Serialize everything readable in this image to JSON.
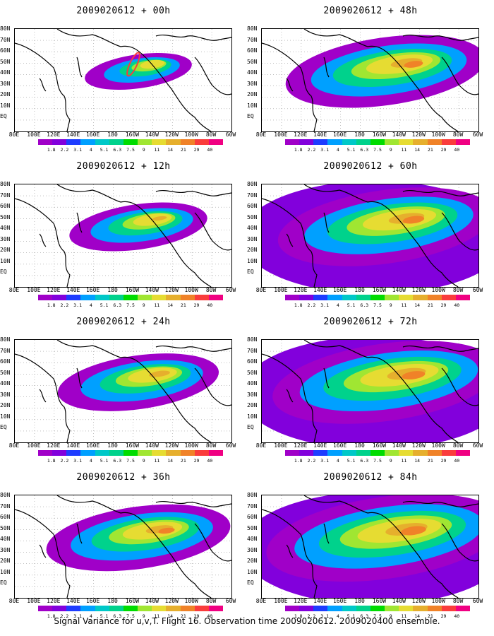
{
  "caption": "Signal Variance for u,v,T. Flight 16. Observation time 2009020612. 2009020400 ensemble.",
  "lat_labels": [
    "80N",
    "70N",
    "60N",
    "50N",
    "40N",
    "30N",
    "20N",
    "10N",
    "EQ"
  ],
  "lon_labels": [
    "80E",
    "100E",
    "120E",
    "140E",
    "160E",
    "180",
    "160W",
    "140W",
    "120W",
    "100W",
    "80W",
    "60W"
  ],
  "colorbar_labels": [
    "1.8",
    "2.2",
    "3.1",
    "4",
    "5.1",
    "6.3",
    "7.5",
    "9",
    "11",
    "14",
    "21",
    "29",
    "40"
  ],
  "colorbar_colors": [
    "#a000c8",
    "#8200dc",
    "#1e3cff",
    "#00a0ff",
    "#00c8c8",
    "#00d28c",
    "#00dc00",
    "#a0e632",
    "#e6dc32",
    "#e6af2d",
    "#f08228",
    "#fa3c3c",
    "#f00082"
  ],
  "panels": [
    {
      "title": "2009020612 + 00h",
      "level": 0.15
    },
    {
      "title": "2009020612 + 48h",
      "level": 0.75
    },
    {
      "title": "2009020612 + 12h",
      "level": 0.35
    },
    {
      "title": "2009020612 + 60h",
      "level": 0.85
    },
    {
      "title": "2009020612 + 24h",
      "level": 0.5
    },
    {
      "title": "2009020612 + 72h",
      "level": 0.92
    },
    {
      "title": "2009020612 + 36h",
      "level": 0.65
    },
    {
      "title": "2009020612 + 84h",
      "level": 1.0
    }
  ]
}
